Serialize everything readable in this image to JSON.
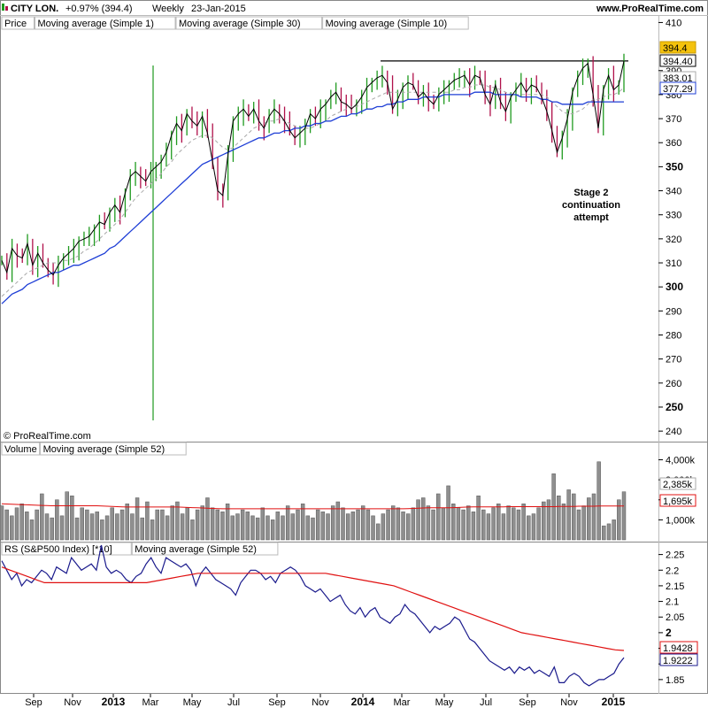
{
  "header": {
    "symbol": "CITY LON.",
    "change": "+0.97% (394.4)",
    "period": "Weekly",
    "date": "23-Jan-2015",
    "site": "www.ProRealTime.com"
  },
  "copyright": "© ProRealTime.com",
  "annotation": {
    "lines": [
      "Stage 2",
      "continuation",
      "attempt"
    ]
  },
  "colors": {
    "up": "#1f9a1f",
    "down": "#b0104a",
    "ma1": "#000000",
    "ma30": "#1f3fd6",
    "ma10": "#a8a8a8",
    "volume": "#8f8f8f",
    "ma52_red": "#e01010",
    "rs": "#1a1a8c",
    "marker_green": "#1f9a1f",
    "highlight_price": "#f4c20d"
  },
  "chart_data": [
    {
      "type": "line",
      "name": "price-panel",
      "legend": [
        "Price",
        "Moving average (Simple 1)",
        "Moving average (Simple 30)",
        "Moving average (Simple 10)"
      ],
      "ylim": [
        236,
        412
      ],
      "yticks": [
        240,
        250,
        260,
        270,
        280,
        290,
        300,
        310,
        320,
        330,
        340,
        350,
        360,
        370,
        380,
        390,
        410
      ],
      "bold_ticks": [
        250,
        300,
        350
      ],
      "xticks": [
        "Sep",
        "Nov",
        "2013",
        "Mar",
        "May",
        "Jul",
        "Sep",
        "Nov",
        "2014",
        "Mar",
        "May",
        "Jul",
        "Sep",
        "Nov",
        "2015"
      ],
      "bold_xticks": [
        "2013",
        "2014",
        "2015"
      ],
      "last_value": "394.4",
      "ma1_last": "394.40",
      "ma10_last": "383.01",
      "ma30_last": "377.29",
      "resistance_level": 394,
      "close": [
        311,
        306,
        316,
        313,
        312,
        318,
        309,
        314,
        310,
        307,
        305,
        309,
        312,
        314,
        316,
        319,
        320,
        321,
        324,
        327,
        326,
        331,
        334,
        331,
        339,
        346,
        348,
        346,
        344,
        348,
        350,
        352,
        356,
        363,
        368,
        365,
        372,
        369,
        367,
        371,
        364,
        352,
        340,
        338,
        355,
        369,
        372,
        374,
        371,
        374,
        369,
        366,
        371,
        374,
        372,
        369,
        365,
        362,
        364,
        366,
        372,
        370,
        374,
        376,
        379,
        381,
        377,
        376,
        374,
        376,
        379,
        383,
        385,
        387,
        388,
        385,
        374,
        378,
        383,
        385,
        384,
        379,
        381,
        378,
        376,
        380,
        382,
        384,
        386,
        387,
        388,
        384,
        388,
        387,
        380,
        376,
        384,
        377,
        373,
        379,
        382,
        385,
        381,
        384,
        383,
        379,
        373,
        365,
        356,
        362,
        370,
        381,
        387,
        391,
        393,
        380,
        366,
        382,
        388,
        382,
        384,
        394
      ],
      "ma10": [
        296,
        298,
        300,
        302,
        304,
        306,
        307,
        308,
        309,
        310,
        310,
        310,
        311,
        311,
        312,
        313,
        315,
        316,
        318,
        320,
        322,
        324,
        326,
        328,
        331,
        334,
        337,
        339,
        341,
        343,
        345,
        347,
        350,
        352,
        355,
        357,
        359,
        361,
        362,
        363,
        363,
        362,
        360,
        358,
        357,
        358,
        360,
        362,
        364,
        366,
        367,
        368,
        369,
        369,
        370,
        369,
        368,
        367,
        366,
        366,
        366,
        367,
        368,
        369,
        371,
        372,
        373,
        374,
        375,
        375,
        376,
        377,
        378,
        379,
        380,
        381,
        381,
        381,
        381,
        381,
        381,
        381,
        381,
        381,
        381,
        381,
        381,
        381,
        382,
        382,
        383,
        383,
        384,
        384,
        384,
        383,
        383,
        382,
        381,
        380,
        380,
        380,
        380,
        380,
        380,
        380,
        379,
        377,
        375,
        373,
        372,
        372,
        373,
        374,
        376,
        378,
        378,
        379,
        380,
        380,
        381,
        383
      ],
      "ma30": [
        293,
        295,
        297,
        298,
        299,
        301,
        302,
        303,
        304,
        305,
        306,
        306,
        307,
        308,
        309,
        309,
        310,
        311,
        312,
        313,
        314,
        316,
        317,
        319,
        321,
        323,
        325,
        327,
        329,
        331,
        333,
        335,
        337,
        339,
        341,
        343,
        345,
        347,
        349,
        351,
        352,
        353,
        354,
        355,
        356,
        357,
        358,
        359,
        360,
        361,
        362,
        362,
        363,
        364,
        364,
        365,
        365,
        366,
        366,
        367,
        367,
        368,
        368,
        369,
        369,
        370,
        371,
        371,
        372,
        372,
        373,
        374,
        374,
        375,
        375,
        376,
        376,
        377,
        377,
        378,
        378,
        378,
        379,
        379,
        379,
        379,
        380,
        380,
        380,
        380,
        380,
        380,
        381,
        381,
        381,
        381,
        380,
        380,
        380,
        380,
        380,
        379,
        379,
        379,
        379,
        378,
        378,
        377,
        377,
        376,
        376,
        376,
        376,
        376,
        377,
        377,
        377,
        377,
        377,
        377,
        377,
        377
      ]
    },
    {
      "type": "bar",
      "name": "volume-panel",
      "legend": [
        "Volume",
        "Moving average (Simple 52)"
      ],
      "ylim": [
        0,
        4200
      ],
      "yticks": [
        1000,
        2000,
        3000,
        4000
      ],
      "ytick_labels": [
        "1,000k",
        "",
        "3,000k",
        "4,000k"
      ],
      "last_value": "2,385k",
      "ma52_last": "1,695k",
      "values": [
        1700,
        1500,
        1200,
        1600,
        1800,
        1400,
        1000,
        1500,
        2300,
        1300,
        1100,
        2000,
        1200,
        2400,
        2200,
        1100,
        1600,
        1500,
        1300,
        1400,
        1000,
        1200,
        1600,
        1300,
        1500,
        1800,
        1300,
        2100,
        1100,
        1900,
        1000,
        1500,
        1500,
        1200,
        1700,
        1900,
        1300,
        1600,
        1000,
        1500,
        1700,
        2100,
        1600,
        1500,
        1400,
        1800,
        1200,
        1300,
        1500,
        1400,
        1200,
        1100,
        1600,
        1200,
        1000,
        1400,
        1200,
        1700,
        1300,
        1500,
        1800,
        1200,
        1100,
        1500,
        1400,
        1300,
        1700,
        1900,
        1600,
        1300,
        1400,
        1500,
        1700,
        1500,
        1200,
        800,
        1300,
        1500,
        1700,
        1600,
        1400,
        1300,
        1600,
        2000,
        2100,
        1700,
        1500,
        2300,
        1600,
        2700,
        1800,
        1600,
        1500,
        1700,
        1400,
        2200,
        1500,
        1300,
        1600,
        1800,
        1300,
        1700,
        1600,
        1500,
        1800,
        1200,
        1300,
        1600,
        1900,
        2000,
        3300,
        2200,
        1800,
        2500,
        2300,
        1500,
        1700,
        2100,
        2300,
        3900,
        700,
        800,
        1000,
        2000,
        2400
      ],
      "ma52": [
        1800,
        1790,
        1780,
        1770,
        1760,
        1750,
        1740,
        1730,
        1720,
        1710,
        1700,
        1700,
        1700,
        1700,
        1700,
        1700,
        1700,
        1700,
        1700,
        1700,
        1690,
        1680,
        1670,
        1660,
        1650,
        1640,
        1640,
        1640,
        1640,
        1640,
        1640,
        1640,
        1640,
        1640,
        1640,
        1640,
        1630,
        1620,
        1610,
        1600,
        1590,
        1580,
        1570,
        1560,
        1550,
        1550,
        1550,
        1550,
        1550,
        1550,
        1550,
        1550,
        1550,
        1550,
        1550,
        1550,
        1550,
        1550,
        1550,
        1550,
        1550,
        1550,
        1550,
        1550,
        1550,
        1550,
        1550,
        1550,
        1550,
        1550,
        1550,
        1550,
        1550,
        1550,
        1550,
        1550,
        1550,
        1550,
        1550,
        1550,
        1550,
        1560,
        1570,
        1580,
        1590,
        1600,
        1600,
        1600,
        1600,
        1600,
        1610,
        1620,
        1630,
        1640,
        1650,
        1650,
        1650,
        1650,
        1650,
        1650,
        1650,
        1660,
        1660,
        1660,
        1660,
        1660,
        1660,
        1660,
        1660,
        1660,
        1660,
        1670,
        1670,
        1670,
        1670,
        1680,
        1680,
        1680,
        1680,
        1690,
        1690,
        1690,
        1690,
        1695,
        1695
      ]
    },
    {
      "type": "line",
      "name": "rs-panel",
      "legend": [
        "RS (S&P500 Index) [*10]",
        "Moving average (Simple 52)"
      ],
      "ylim": [
        1.81,
        2.28
      ],
      "yticks": [
        1.85,
        1.9,
        1.95,
        2,
        2.05,
        2.1,
        2.15,
        2.2,
        2.25
      ],
      "ytick_labels": [
        "1.85",
        "",
        "",
        "2",
        "2.05",
        "2.1",
        "2.15",
        "2.2",
        "2.25"
      ],
      "bold_ticks": [
        2
      ],
      "last_value": "1.9222",
      "ma52_last": "1.9428",
      "values": [
        2.23,
        2.2,
        2.17,
        2.19,
        2.15,
        2.17,
        2.16,
        2.18,
        2.2,
        2.19,
        2.17,
        2.21,
        2.2,
        2.19,
        2.24,
        2.22,
        2.2,
        2.21,
        2.22,
        2.2,
        2.28,
        2.21,
        2.19,
        2.2,
        2.19,
        2.17,
        2.16,
        2.18,
        2.19,
        2.22,
        2.24,
        2.21,
        2.19,
        2.24,
        2.23,
        2.22,
        2.21,
        2.22,
        2.2,
        2.15,
        2.19,
        2.21,
        2.19,
        2.17,
        2.16,
        2.15,
        2.14,
        2.12,
        2.16,
        2.18,
        2.2,
        2.2,
        2.19,
        2.17,
        2.18,
        2.16,
        2.19,
        2.2,
        2.21,
        2.2,
        2.18,
        2.15,
        2.14,
        2.13,
        2.14,
        2.12,
        2.1,
        2.11,
        2.12,
        2.09,
        2.07,
        2.06,
        2.08,
        2.05,
        2.07,
        2.08,
        2.05,
        2.04,
        2.03,
        2.05,
        2.06,
        2.09,
        2.07,
        2.06,
        2.04,
        2.02,
        2.0,
        2.02,
        2.01,
        2.02,
        2.03,
        2.05,
        2.04,
        2.01,
        1.98,
        1.97,
        1.95,
        1.93,
        1.91,
        1.9,
        1.89,
        1.88,
        1.89,
        1.87,
        1.89,
        1.88,
        1.89,
        1.87,
        1.88,
        1.87,
        1.86,
        1.89,
        1.84,
        1.84,
        1.86,
        1.87,
        1.86,
        1.84,
        1.83,
        1.84,
        1.85,
        1.85,
        1.86,
        1.87,
        1.9,
        1.92
      ],
      "ma52": [
        2.21,
        2.2,
        2.19,
        2.18,
        2.17,
        2.16,
        2.16,
        2.16,
        2.16,
        2.16,
        2.16,
        2.16,
        2.16,
        2.16,
        2.16,
        2.16,
        2.16,
        2.16,
        2.165,
        2.17,
        2.175,
        2.18,
        2.185,
        2.19,
        2.19,
        2.19,
        2.19,
        2.19,
        2.19,
        2.19,
        2.19,
        2.19,
        2.19,
        2.19,
        2.19,
        2.19,
        2.19,
        2.19,
        2.19,
        2.185,
        2.18,
        2.175,
        2.17,
        2.165,
        2.16,
        2.155,
        2.15,
        2.14,
        2.13,
        2.12,
        2.11,
        2.1,
        2.09,
        2.08,
        2.07,
        2.06,
        2.05,
        2.04,
        2.03,
        2.02,
        2.01,
        2.0,
        1.995,
        1.99,
        1.985,
        1.98,
        1.975,
        1.97,
        1.965,
        1.96,
        1.955,
        1.95,
        1.945,
        1.943
      ]
    }
  ]
}
